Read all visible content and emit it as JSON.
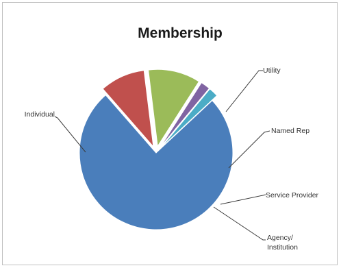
{
  "chart_data": {
    "type": "pie",
    "title": "Membership",
    "slices": [
      {
        "label": "Individual",
        "value": 75.5,
        "color": "#4a7ebb",
        "exploded": false
      },
      {
        "label": "Utility",
        "value": 9.5,
        "color": "#c0504d",
        "exploded": true
      },
      {
        "label": "Named Rep",
        "value": 11.0,
        "color": "#9bbb59",
        "exploded": true
      },
      {
        "label": "Service Provider",
        "value": 2.0,
        "color": "#8064a2",
        "exploded": true
      },
      {
        "label": "Agency/ Institution",
        "value": 2.0,
        "color": "#4bacc6",
        "exploded": true
      }
    ],
    "label_lines": [
      [
        "Individual"
      ],
      [
        "Utility"
      ],
      [
        "Named Rep"
      ],
      [
        "Service Provider"
      ],
      [
        "Agency/",
        "Institution"
      ]
    ],
    "legend": "none",
    "grid": false
  }
}
